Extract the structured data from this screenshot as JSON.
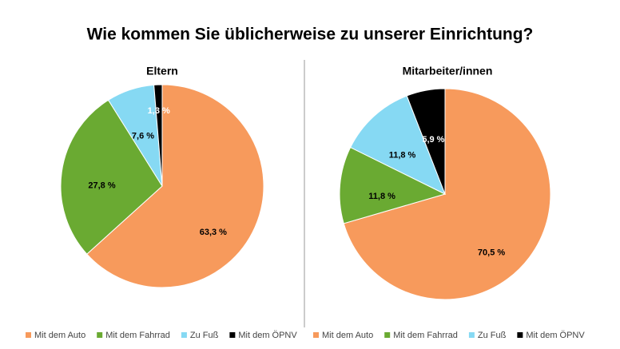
{
  "title": "Wie kommen Sie üblicherweise zu unserer Einrichtung?",
  "chart_data": [
    {
      "type": "pie",
      "title": "Eltern",
      "categories": [
        "Mit dem Auto",
        "Mit dem Fahrrad",
        "Zu Fuß",
        "Mit dem ÖPNV"
      ],
      "values": [
        63.3,
        27.8,
        7.6,
        1.3
      ],
      "value_labels": [
        "63,3 %",
        "27,8 %",
        "7,6 %",
        "1,3 %"
      ],
      "colors": [
        "#f79a5c",
        "#6aaa32",
        "#86d9f3",
        "#000000"
      ]
    },
    {
      "type": "pie",
      "title": "Mitarbeiter/innen",
      "categories": [
        "Mit dem Auto",
        "Mit dem Fahrrad",
        "Zu Fuß",
        "Mit dem ÖPNV"
      ],
      "values": [
        70.5,
        11.8,
        11.8,
        5.9
      ],
      "value_labels": [
        "70,5 %",
        "11,8 %",
        "11,8 %",
        "5,9 %"
      ],
      "colors": [
        "#f79a5c",
        "#6aaa32",
        "#86d9f3",
        "#000000"
      ]
    }
  ]
}
